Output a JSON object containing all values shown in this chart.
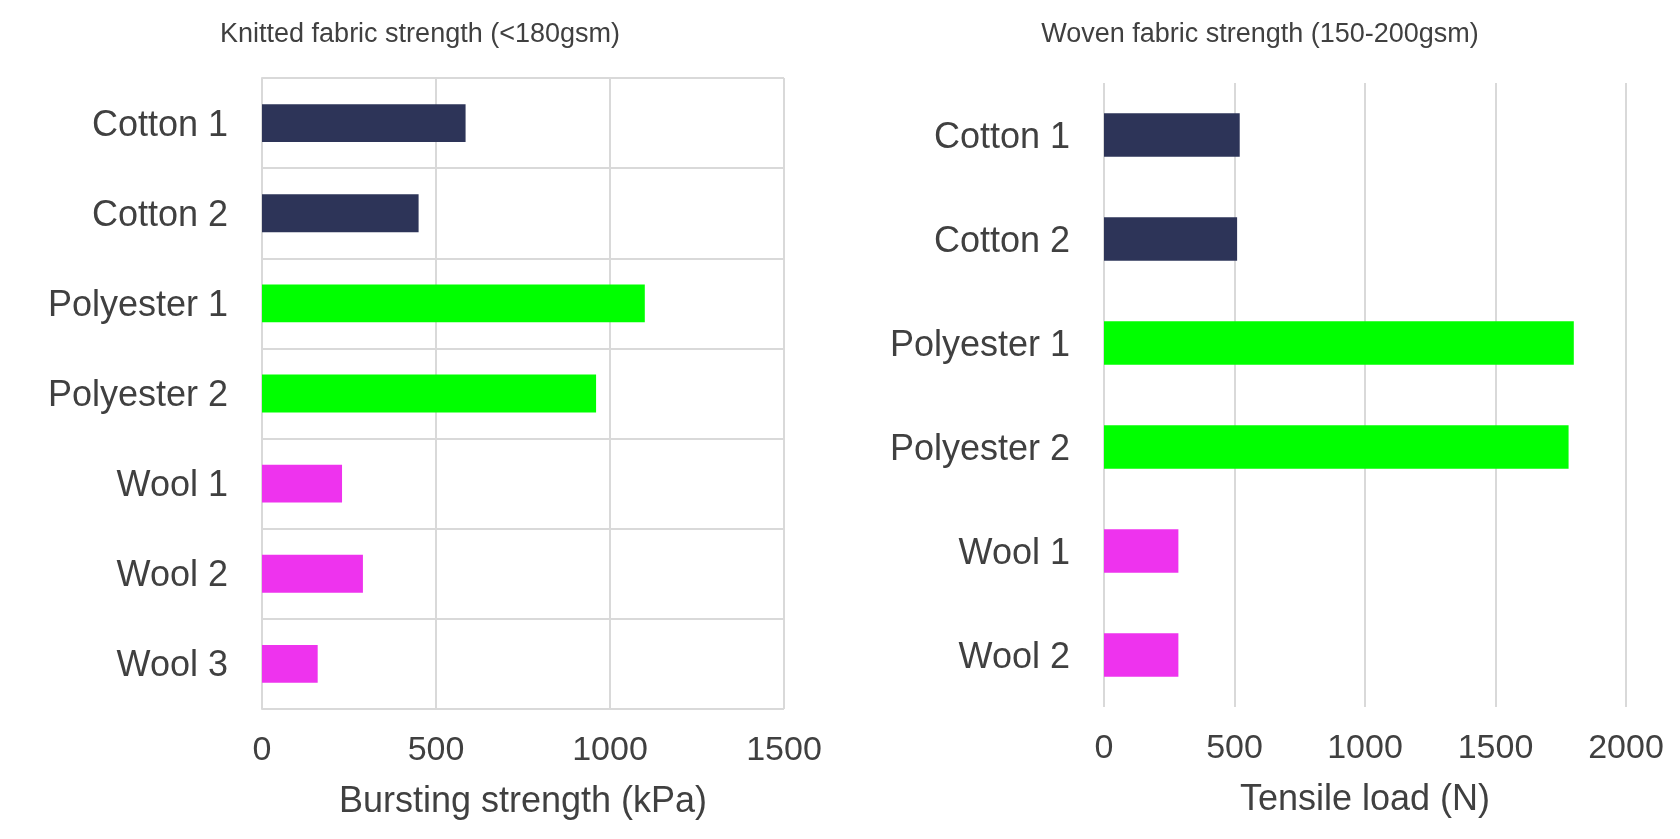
{
  "chart_data": [
    {
      "type": "bar",
      "orientation": "horizontal",
      "title": "Knitted fabric strength (<180gsm)",
      "xlabel": "Bursting strength (kPa)",
      "categories": [
        "Cotton 1",
        "Cotton 2",
        "Polyester 1",
        "Polyester 2",
        "Wool 1",
        "Wool 2",
        "Wool 3"
      ],
      "values": [
        585,
        450,
        1100,
        960,
        230,
        290,
        160
      ],
      "colors": [
        "#2d3458",
        "#2d3458",
        "#00ff00",
        "#00ff00",
        "#ee33ee",
        "#ee33ee",
        "#ee33ee"
      ],
      "xlim": [
        0,
        1500
      ],
      "xticks": [
        0,
        500,
        1000,
        1500
      ],
      "grid": true
    },
    {
      "type": "bar",
      "orientation": "horizontal",
      "title": "Woven fabric strength (150-200gsm)",
      "xlabel": "Tensile load (N)",
      "categories": [
        "Cotton 1",
        "Cotton 2",
        "Polyester 1",
        "Polyester 2",
        "Wool 1",
        "Wool 2"
      ],
      "values": [
        520,
        510,
        1800,
        1780,
        285,
        285
      ],
      "colors": [
        "#2d3458",
        "#2d3458",
        "#00ff00",
        "#00ff00",
        "#ee33ee",
        "#ee33ee"
      ],
      "xlim": [
        0,
        2000
      ],
      "xticks": [
        0,
        500,
        1000,
        1500,
        2000
      ],
      "grid": "x"
    }
  ]
}
